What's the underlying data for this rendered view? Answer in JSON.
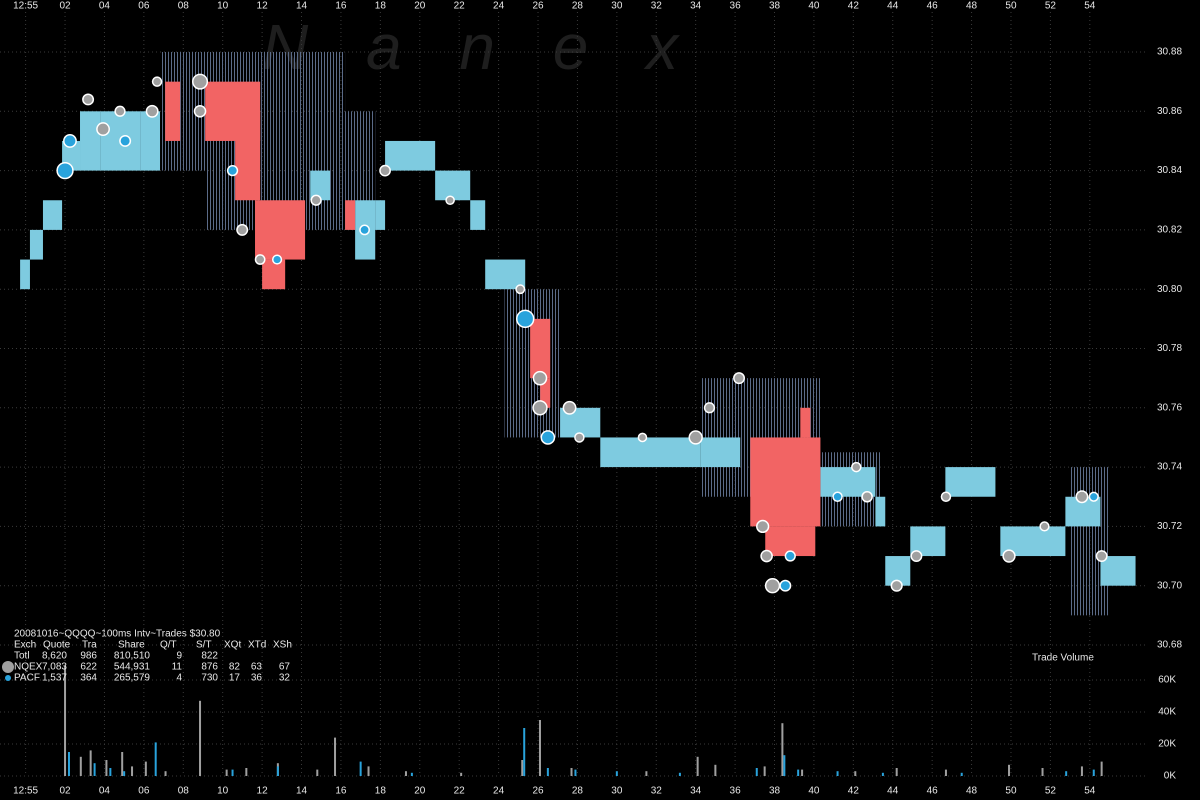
{
  "chart_data": {
    "type": "quote_trade",
    "title": "20081016~QQQQ~100ms Intv~Trades $30.80",
    "watermark": "N a n e x",
    "grid": true,
    "xlim": [
      -1.3,
      56.8
    ],
    "xticks": [
      {
        "value": 0,
        "label": "12:55"
      },
      {
        "value": 2,
        "label": "02"
      },
      {
        "value": 4,
        "label": "04"
      },
      {
        "value": 6,
        "label": "06"
      },
      {
        "value": 8,
        "label": "08"
      },
      10,
      12,
      14,
      16,
      18,
      20,
      22,
      24,
      26,
      28,
      30,
      32,
      34,
      36,
      38,
      40,
      42,
      44,
      46,
      48,
      50,
      52,
      54
    ],
    "ylim": [
      30.68,
      30.88
    ],
    "yticks": [
      30.68,
      {
        "value": 30.7,
        "label": "30.70"
      },
      30.72,
      30.74,
      30.76,
      30.78,
      {
        "value": 30.8,
        "label": "30.80"
      },
      30.82,
      30.84,
      30.86,
      30.88
    ],
    "quote_bands": [
      {
        "style": "hatch",
        "color": "#5b6b88",
        "bands": [
          [
            6.82,
            9.11,
            30.84,
            30.88
          ],
          [
            9.11,
            16.21,
            30.82,
            30.88
          ],
          [
            16.21,
            17.74,
            30.82,
            30.86
          ],
          [
            24.3,
            27.12,
            30.75,
            30.8
          ],
          [
            34.23,
            40.33,
            30.73,
            30.77
          ],
          [
            40.33,
            43.37,
            30.72,
            30.745
          ],
          [
            53.0,
            55.0,
            30.69,
            30.74
          ]
        ]
      },
      {
        "style": "solid",
        "color": "#7ecbe0",
        "bands": [
          [
            -0.28,
            0.22,
            30.8,
            30.81
          ],
          [
            0.22,
            0.88,
            30.81,
            30.82
          ],
          [
            0.88,
            1.85,
            30.82,
            30.83
          ],
          [
            1.85,
            2.76,
            30.84,
            30.85
          ],
          [
            2.76,
            3.78,
            30.84,
            30.86
          ],
          [
            3.78,
            5.81,
            30.84,
            30.86
          ],
          [
            5.81,
            6.82,
            30.84,
            30.86
          ],
          [
            14.44,
            15.45,
            30.83,
            30.84
          ],
          [
            16.72,
            17.74,
            30.81,
            30.83
          ],
          [
            17.74,
            18.24,
            30.82,
            30.83
          ],
          [
            18.24,
            20.78,
            30.84,
            30.85
          ],
          [
            20.78,
            22.56,
            30.83,
            30.84
          ],
          [
            22.56,
            23.32,
            30.82,
            30.83
          ],
          [
            23.32,
            25.35,
            30.8,
            30.81
          ],
          [
            27.12,
            29.16,
            30.75,
            30.76
          ],
          [
            29.16,
            34.23,
            30.74,
            30.75
          ],
          [
            34.23,
            36.26,
            30.74,
            30.75
          ],
          [
            40.33,
            43.12,
            30.73,
            30.74
          ],
          [
            43.12,
            43.62,
            30.72,
            30.73
          ],
          [
            43.62,
            44.89,
            30.7,
            30.71
          ],
          [
            44.89,
            46.67,
            30.71,
            30.72
          ],
          [
            46.67,
            49.21,
            30.73,
            30.74
          ],
          [
            49.46,
            52.76,
            30.71,
            30.72
          ],
          [
            52.76,
            54.54,
            30.72,
            30.73
          ],
          [
            54.54,
            56.32,
            30.7,
            30.71
          ]
        ]
      },
      {
        "style": "solid",
        "color": "#f26464",
        "bands": [
          [
            7.08,
            7.84,
            30.85,
            30.87
          ],
          [
            9.11,
            11.9,
            30.85,
            30.87
          ],
          [
            10.63,
            11.9,
            30.83,
            30.86
          ],
          [
            11.64,
            14.18,
            30.81,
            30.83
          ],
          [
            12.0,
            13.17,
            30.8,
            30.81
          ],
          [
            16.21,
            16.72,
            30.82,
            30.83
          ],
          [
            25.6,
            26.62,
            30.77,
            30.79
          ],
          [
            26.11,
            26.62,
            30.76,
            30.77
          ],
          [
            36.77,
            40.33,
            30.72,
            30.75
          ],
          [
            37.53,
            40.07,
            30.71,
            30.72
          ],
          [
            39.31,
            39.82,
            30.75,
            30.76
          ]
        ]
      }
    ],
    "table_columns": [
      "Exch",
      "Quote",
      "Tra",
      "Share",
      "Q/T",
      "S/T",
      "XQt",
      "XTd",
      "XSh"
    ],
    "totals": [
      "Totl",
      "8,620",
      "986",
      "810,510",
      "9",
      "822"
    ],
    "trades": [
      {
        "name": "NQEX",
        "color": "#a0a0a0",
        "stats": [
          "7,083",
          "622",
          "544,931",
          "11",
          "876",
          "82",
          "63",
          "67"
        ],
        "x": [
          3.17,
          3.93,
          4.79,
          6.42,
          6.67,
          8.85,
          8.85,
          10.99,
          11.9,
          14.74,
          18.24,
          21.54,
          25.1,
          26.1,
          26.1,
          27.6,
          28.1,
          31.3,
          34.0,
          34.7,
          36.2,
          37.4,
          37.6,
          37.9,
          42.15,
          42.7,
          44.2,
          45.2,
          46.7,
          49.9,
          51.7,
          53.6,
          54.6
        ],
        "values": [
          30.864,
          30.854,
          30.86,
          30.86,
          30.87,
          30.87,
          30.86,
          30.82,
          30.81,
          30.83,
          30.84,
          30.83,
          30.8,
          30.77,
          30.76,
          30.76,
          30.75,
          30.75,
          30.75,
          30.76,
          30.77,
          30.72,
          30.71,
          30.7,
          30.74,
          30.73,
          30.7,
          30.71,
          30.73,
          30.71,
          30.72,
          30.73,
          30.71
        ],
        "sizes": [
          1500,
          2500,
          1200,
          2000,
          900,
          4000,
          1800,
          1500,
          1000,
          1200,
          1400,
          600,
          700,
          3000,
          3500,
          2500,
          900,
          600,
          2800,
          1200,
          1500,
          2200,
          1800,
          3500,
          900,
          1300,
          1600,
          1500,
          900,
          2200,
          800,
          2000,
          1500
        ]
      },
      {
        "name": "PACF",
        "color": "#29a3dc",
        "stats": [
          "1,537",
          "364",
          "265,579",
          "4",
          "730",
          "17",
          "36",
          "32"
        ],
        "x": [
          2.0,
          2.25,
          5.05,
          10.5,
          12.76,
          17.2,
          25.35,
          26.5,
          38.55,
          38.8,
          41.2,
          54.2
        ],
        "values": [
          30.84,
          30.85,
          30.85,
          30.84,
          30.81,
          30.82,
          30.79,
          30.75,
          30.7,
          30.71,
          30.73,
          30.73
        ],
        "sizes": [
          5000,
          2500,
          1500,
          1200,
          800,
          1000,
          6000,
          3000,
          1500,
          1200,
          900,
          800
        ]
      }
    ],
    "volume": {
      "label": "Trade Volume",
      "ylim": [
        0,
        60000
      ],
      "yticks": [
        {
          "value": 0,
          "label": "0K"
        },
        {
          "value": 20000,
          "label": "20K"
        },
        {
          "value": 40000,
          "label": "40K"
        },
        {
          "value": 60000,
          "label": "60K"
        }
      ],
      "series": [
        {
          "color": "#a0a0a0",
          "x": [
            2.0,
            2.8,
            3.3,
            4.1,
            4.9,
            5.4,
            6.1,
            7.1,
            8.85,
            10.2,
            11.2,
            12.8,
            14.8,
            15.7,
            17.4,
            19.3,
            22.1,
            25.2,
            26.1,
            27.7,
            31.5,
            34.1,
            35.0,
            37.5,
            38.4,
            39.4,
            42.1,
            44.2,
            46.7,
            49.9,
            51.6,
            53.6,
            54.6
          ],
          "values": [
            69000,
            12000,
            16000,
            10000,
            15000,
            6000,
            9000,
            3000,
            47000,
            4000,
            5000,
            8000,
            4000,
            24000,
            6000,
            3000,
            2000,
            10000,
            35000,
            5000,
            3000,
            12000,
            7000,
            6000,
            33000,
            4000,
            3000,
            5000,
            4000,
            7000,
            5000,
            6000,
            9000
          ]
        },
        {
          "color": "#29a3dc",
          "x": [
            2.2,
            3.5,
            4.3,
            5.0,
            6.6,
            10.5,
            12.8,
            17.0,
            19.6,
            25.3,
            26.5,
            27.9,
            30.0,
            33.2,
            37.1,
            38.5,
            39.2,
            41.2,
            43.5,
            47.5,
            52.8,
            54.2
          ],
          "values": [
            15000,
            8000,
            5000,
            3000,
            21000,
            4000,
            6000,
            9000,
            2000,
            30000,
            5000,
            4000,
            3000,
            2000,
            5000,
            13000,
            4000,
            3000,
            2000,
            2000,
            3000,
            4000
          ]
        }
      ]
    }
  }
}
